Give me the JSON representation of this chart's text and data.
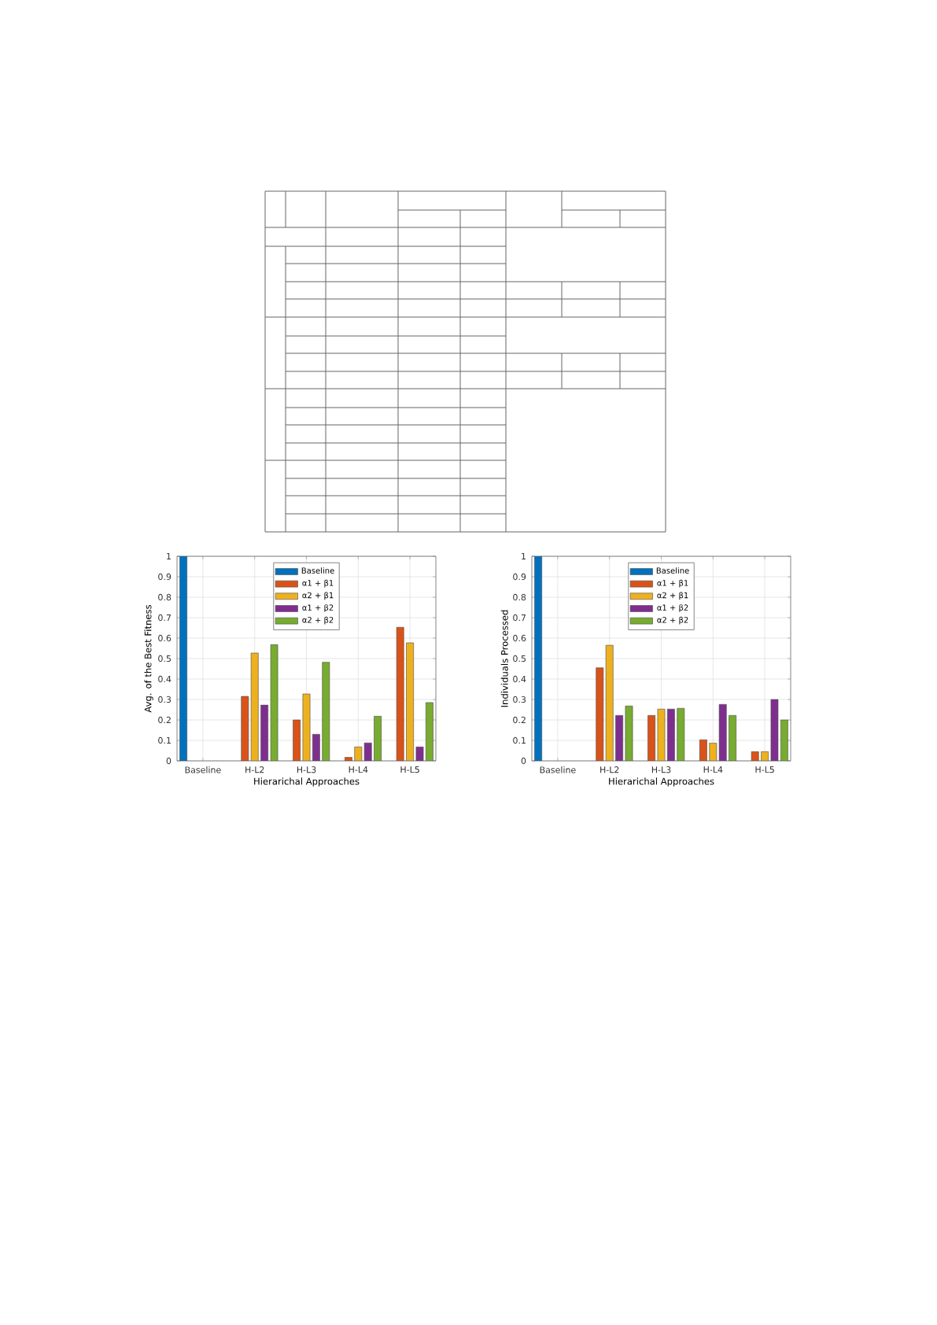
{
  "chart_data": [
    {
      "type": "bar",
      "xlabel": "Hierarichal Approaches",
      "ylabel": "Avg. of the Best Fitness",
      "categories": [
        "Baseline",
        "H-L2",
        "H-L3",
        "H-L4",
        "H-L5"
      ],
      "series": [
        {
          "name": "Baseline",
          "color": "#0072bd",
          "values": [
            1,
            null,
            null,
            null,
            null
          ]
        },
        {
          "name": "α1 + β1",
          "color": "#d95319",
          "values": [
            null,
            0.315,
            0.2,
            0.017,
            0.653
          ]
        },
        {
          "name": "α2 + β1",
          "color": "#edb120",
          "values": [
            null,
            0.527,
            0.327,
            0.068,
            0.577
          ]
        },
        {
          "name": "α1 + β2",
          "color": "#7e2f8e",
          "values": [
            null,
            0.273,
            0.13,
            0.088,
            0.068
          ]
        },
        {
          "name": "α2 + β2",
          "color": "#77ac30",
          "values": [
            null,
            0.568,
            0.482,
            0.218,
            0.285
          ]
        }
      ],
      "ylim": [
        0,
        1
      ],
      "yticks": [
        0,
        0.1,
        0.2,
        0.3,
        0.4,
        0.5,
        0.6,
        0.7,
        0.8,
        0.9,
        1
      ],
      "grid": true,
      "legend": "top"
    },
    {
      "type": "bar",
      "xlabel": "Hierarichal Approaches",
      "ylabel": "Individuals Processed",
      "categories": [
        "Baseline",
        "H-L2",
        "H-L3",
        "H-L4",
        "H-L5"
      ],
      "series": [
        {
          "name": "Baseline",
          "color": "#0072bd",
          "values": [
            1,
            null,
            null,
            null,
            null
          ]
        },
        {
          "name": "α1 + β1",
          "color": "#d95319",
          "values": [
            null,
            0.455,
            0.222,
            0.103,
            0.045
          ]
        },
        {
          "name": "α2 + β1",
          "color": "#edb120",
          "values": [
            null,
            0.565,
            0.253,
            0.087,
            0.045
          ]
        },
        {
          "name": "α1 + β2",
          "color": "#7e2f8e",
          "values": [
            null,
            0.222,
            0.253,
            0.276,
            0.3
          ]
        },
        {
          "name": "α2 + β2",
          "color": "#77ac30",
          "values": [
            null,
            0.268,
            0.257,
            0.222,
            0.2
          ]
        }
      ],
      "ylim": [
        0,
        1
      ],
      "yticks": [
        0,
        0.1,
        0.2,
        0.3,
        0.4,
        0.5,
        0.6,
        0.7,
        0.8,
        0.9,
        1
      ],
      "grid": true,
      "legend": "top"
    }
  ]
}
